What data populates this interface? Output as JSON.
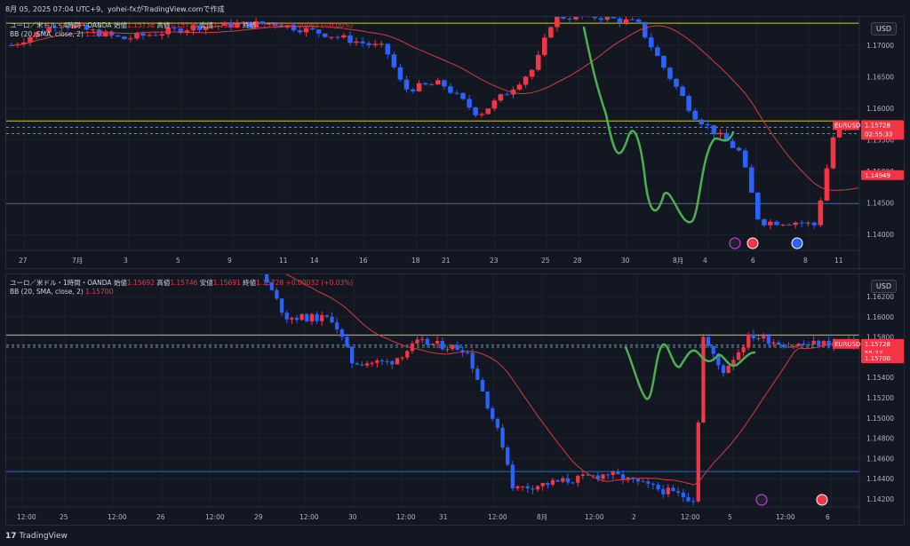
{
  "header": {
    "text": "8月 05, 2025 07:04 UTC+9、yohei-fxがTradingView.comで作成"
  },
  "colors": {
    "up": "#f23645",
    "down": "#2962ff",
    "bg": "#131722",
    "sma": "#d93a3a",
    "green": "#4caf50",
    "yellow": "#d1c42a",
    "blueline": "#2962ff"
  },
  "pane1": {
    "legend_title": "ユーロ／米ドル・4時間・OANDA",
    "o_label": "始値",
    "o_val": "1.15736",
    "h_label": "高値",
    "h_val": "1.15736",
    "l_label": "安値",
    "l_val": "1.15682",
    "c_label": "終値",
    "c_val": "1.15728",
    "change": "−0.00002 (−0.00%)",
    "bb_label": "BB (20, SMA, close, 2)",
    "bb_val": "1.14949",
    "currency": "USD",
    "price_ticks": [
      "1.17000",
      "1.16500",
      "1.16000",
      "1.15500",
      "1.15000",
      "1.14500",
      "1.14000"
    ],
    "price_tick_vals": [
      1.17,
      1.165,
      1.16,
      1.155,
      1.15,
      1.145,
      1.14
    ],
    "ymin": 1.1375,
    "ymax": 1.1745,
    "time_ticks": [
      "27",
      "7月",
      "3",
      "5",
      "9",
      "11",
      "14",
      "16",
      "18",
      "21",
      "23",
      "25",
      "28",
      "30",
      "8月",
      "4",
      "6",
      "8",
      "11"
    ],
    "tag_symbol": "EURUSD",
    "tag_price": "1.15728",
    "tag_countdown": "02:55:33",
    "tag_bb": "1.14949",
    "bb_price": 1.14949,
    "last_price": 1.15728,
    "yellow_level": 1.158,
    "yellow_top": 1.1735,
    "blue_level": 1.1449,
    "dashed_levels": [
      1.157,
      1.156
    ]
  },
  "pane2": {
    "legend_title": "ユーロ／米ドル・1時間・OANDA",
    "o_label": "始値",
    "o_val": "1.15692",
    "h_label": "高値",
    "h_val": "1.15746",
    "l_label": "安値",
    "l_val": "1.15691",
    "c_label": "終値",
    "c_val": "1.15728",
    "change": "+0.00032 (+0.03%)",
    "bb_label": "BB (20, SMA, close, 2)",
    "bb_val": "1.15700",
    "currency": "USD",
    "price_ticks": [
      "1.16200",
      "1.16000",
      "1.15800",
      "1.15600",
      "1.15400",
      "1.15200",
      "1.15000",
      "1.14800",
      "1.14600",
      "1.14400",
      "1.14200"
    ],
    "price_tick_vals": [
      1.162,
      1.16,
      1.158,
      1.156,
      1.154,
      1.152,
      1.15,
      1.148,
      1.146,
      1.144,
      1.142
    ],
    "ymin": 1.1412,
    "ymax": 1.1642,
    "time_ticks": [
      "12:00",
      "25",
      "12:00",
      "26",
      "12:00",
      "29",
      "12:00",
      "30",
      "12:00",
      "31",
      "12:00",
      "8月",
      "12:00",
      "2",
      "12:00",
      "5",
      "12:00",
      "6"
    ],
    "tag_symbol": "EURUSD",
    "tag_price": "1.15728",
    "tag_countdown": "55:33",
    "tag_bb": "1.15700",
    "bb_price": 1.157,
    "last_price": 1.15728,
    "yellow_level": 1.1582,
    "blue_level": 1.1447,
    "dashed_levels": [
      1.1572,
      1.157
    ]
  },
  "footer": {
    "brand": "TradingView",
    "logo": "17"
  },
  "icons": [
    "lightning-icon",
    "us-flag-icon",
    "globe-icon"
  ]
}
